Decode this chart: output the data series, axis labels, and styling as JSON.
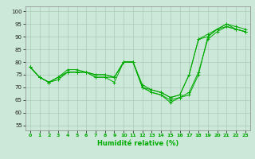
{
  "title": "",
  "xlabel": "Humidité relative (%)",
  "ylabel": "",
  "bg_color": "#cce8d8",
  "grid_color": "#aaccb8",
  "line_color": "#00aa00",
  "xlim": [
    -0.5,
    23.5
  ],
  "ylim": [
    53,
    102
  ],
  "yticks": [
    55,
    60,
    65,
    70,
    75,
    80,
    85,
    90,
    95,
    100
  ],
  "xticks": [
    0,
    1,
    2,
    3,
    4,
    5,
    6,
    7,
    8,
    9,
    10,
    11,
    12,
    13,
    14,
    15,
    16,
    17,
    18,
    19,
    20,
    21,
    22,
    23
  ],
  "series": [
    [
      78,
      74,
      72,
      73,
      76,
      76,
      76,
      74,
      74,
      72,
      80,
      80,
      70,
      68,
      67,
      64,
      66,
      67,
      75,
      90,
      93,
      95,
      93,
      92
    ],
    [
      78,
      74,
      72,
      74,
      76,
      76,
      76,
      74,
      74,
      74,
      80,
      80,
      70,
      68,
      67,
      65,
      66,
      68,
      76,
      89,
      92,
      94,
      93,
      92
    ],
    [
      78,
      74,
      72,
      74,
      76,
      76,
      76,
      75,
      75,
      74,
      80,
      80,
      71,
      69,
      68,
      66,
      67,
      75,
      89,
      91,
      93,
      95,
      94,
      93
    ],
    [
      78,
      74,
      72,
      74,
      77,
      77,
      76,
      75,
      75,
      74,
      80,
      80,
      70,
      69,
      68,
      66,
      67,
      75,
      89,
      90,
      93,
      94,
      93,
      92
    ]
  ]
}
